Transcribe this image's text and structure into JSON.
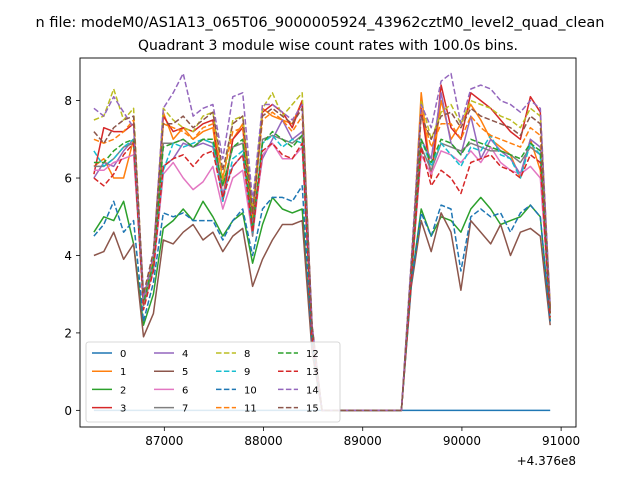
{
  "figure": {
    "suptitle": "n file: modeM0/AS1A13_065T06_9000005924_43962cztM0_level2_quad_clean",
    "offset_label": "+4.376e8"
  },
  "chart_data": {
    "type": "line",
    "title": "Quadrant 3 module wise count rates with 100.0s bins.",
    "xlabel": "",
    "ylabel": "",
    "xlim": [
      86150,
      91150
    ],
    "ylim": [
      -0.43,
      9.1
    ],
    "x_ticks": [
      87000,
      88000,
      89000,
      90000,
      91000
    ],
    "x_tick_labels": [
      "87000",
      "88000",
      "89000",
      "90000",
      "91000"
    ],
    "y_ticks": [
      0,
      2,
      4,
      6,
      8
    ],
    "y_tick_labels": [
      "0",
      "2",
      "4",
      "6",
      "8"
    ],
    "grid": false,
    "legend": {
      "placement": "lower-left",
      "columns": 4
    },
    "x": [
      86290,
      86390,
      86490,
      86590,
      86690,
      86790,
      86890,
      86990,
      87090,
      87190,
      87290,
      87390,
      87490,
      87590,
      87690,
      87790,
      87890,
      87990,
      88090,
      88190,
      88290,
      88390,
      88490,
      88590,
      88690,
      88790,
      88890,
      88990,
      89090,
      89190,
      89290,
      89390,
      89490,
      89590,
      89690,
      89790,
      89890,
      89990,
      90090,
      90190,
      90290,
      90390,
      90490,
      90590,
      90690,
      90790,
      90890
    ],
    "series": [
      {
        "name": "0",
        "color": "#1f77b4",
        "dash": "solid",
        "values": [
          0,
          0,
          0,
          0,
          0,
          0,
          0,
          0,
          0,
          0,
          0,
          0,
          0,
          0,
          0,
          0,
          0,
          0,
          0,
          0,
          0,
          0,
          0,
          0,
          0,
          0,
          0,
          0,
          0,
          0,
          0,
          0,
          0,
          0,
          0,
          0,
          0,
          0,
          0,
          0,
          0,
          0,
          0,
          0,
          0,
          0,
          0
        ]
      },
      {
        "name": "1",
        "color": "#ff7f0e",
        "dash": "solid",
        "values": [
          6.3,
          6.5,
          6.0,
          6.0,
          7.0,
          2.8,
          4.0,
          7.7,
          7.0,
          7.3,
          7.0,
          7.2,
          7.3,
          5.5,
          7.0,
          7.4,
          5.0,
          7.8,
          7.6,
          7.5,
          7.4,
          8.0,
          2.0,
          0,
          0,
          0,
          0,
          0,
          0,
          0,
          0,
          0,
          3.5,
          8.2,
          6.0,
          8.0,
          7.0,
          7.4,
          7.9,
          7.5,
          7.0,
          6.8,
          6.6,
          6.0,
          7.0,
          6.2,
          2.6
        ]
      },
      {
        "name": "2",
        "color": "#2ca02c",
        "dash": "solid",
        "values": [
          4.6,
          5.0,
          4.9,
          5.4,
          4.3,
          2.2,
          3.0,
          4.7,
          4.9,
          5.2,
          4.9,
          5.4,
          5.0,
          4.5,
          4.9,
          5.1,
          3.8,
          4.8,
          5.5,
          5.2,
          5.1,
          5.2,
          1.6,
          0,
          0,
          0,
          0,
          0,
          0,
          0,
          0,
          0,
          3.3,
          5.2,
          4.5,
          5.0,
          4.9,
          4.6,
          5.2,
          5.5,
          5.2,
          4.8,
          4.9,
          5.0,
          5.3,
          5.0,
          2.3
        ]
      },
      {
        "name": "3",
        "color": "#d62728",
        "dash": "solid",
        "values": [
          6.1,
          7.3,
          7.2,
          7.2,
          7.4,
          2.7,
          3.7,
          7.6,
          7.2,
          7.3,
          7.2,
          7.4,
          7.5,
          5.4,
          7.0,
          7.3,
          4.9,
          7.7,
          7.9,
          7.7,
          7.3,
          8.0,
          2.1,
          0,
          0,
          0,
          0,
          0,
          0,
          0,
          0,
          0,
          3.6,
          7.8,
          6.0,
          8.4,
          7.3,
          7.0,
          8.2,
          8.0,
          7.8,
          7.5,
          7.2,
          7.0,
          8.1,
          7.7,
          2.6
        ]
      },
      {
        "name": "4",
        "color": "#9467bd",
        "dash": "solid",
        "values": [
          6.0,
          6.4,
          6.3,
          6.7,
          7.0,
          2.9,
          3.6,
          6.3,
          6.5,
          6.9,
          6.8,
          6.9,
          6.8,
          5.6,
          6.3,
          6.6,
          4.8,
          6.5,
          7.0,
          7.5,
          7.0,
          7.2,
          1.8,
          0,
          0,
          0,
          0,
          0,
          0,
          0,
          0,
          0,
          3.5,
          7.0,
          6.5,
          8.2,
          6.9,
          6.6,
          7.6,
          6.5,
          7.0,
          6.7,
          6.5,
          6.1,
          7.0,
          6.8,
          2.5
        ]
      },
      {
        "name": "5",
        "color": "#8c564b",
        "dash": "solid",
        "values": [
          4.0,
          4.1,
          4.6,
          3.9,
          4.3,
          1.9,
          2.5,
          4.4,
          4.3,
          4.6,
          4.8,
          4.4,
          4.6,
          4.1,
          4.5,
          4.7,
          3.2,
          3.9,
          4.4,
          4.8,
          4.8,
          4.9,
          1.5,
          0,
          0,
          0,
          0,
          0,
          0,
          0,
          0,
          0,
          3.2,
          4.9,
          4.1,
          5.1,
          4.6,
          3.1,
          4.9,
          4.6,
          4.3,
          4.8,
          4.0,
          4.6,
          4.7,
          4.5,
          2.2
        ]
      },
      {
        "name": "6",
        "color": "#e377c2",
        "dash": "solid",
        "values": [
          6.2,
          6.2,
          6.4,
          6.5,
          6.6,
          2.8,
          3.6,
          6.1,
          6.4,
          6.0,
          5.7,
          5.9,
          6.3,
          5.2,
          6.0,
          6.2,
          4.5,
          6.6,
          6.9,
          6.5,
          6.5,
          6.8,
          1.9,
          0,
          0,
          0,
          0,
          0,
          0,
          0,
          0,
          0,
          3.4,
          6.6,
          6.1,
          6.7,
          6.6,
          6.4,
          6.7,
          6.4,
          6.8,
          6.4,
          6.2,
          6.1,
          6.3,
          6.0,
          2.5
        ]
      },
      {
        "name": "7",
        "color": "#7f7f7f",
        "dash": "solid",
        "values": [
          6.3,
          6.3,
          6.5,
          6.8,
          6.9,
          2.7,
          3.7,
          6.9,
          6.9,
          7.0,
          6.8,
          7.0,
          6.9,
          5.8,
          6.8,
          6.9,
          4.5,
          7.0,
          7.1,
          7.0,
          6.9,
          7.1,
          2.0,
          0,
          0,
          0,
          0,
          0,
          0,
          0,
          0,
          0,
          3.4,
          6.8,
          6.2,
          6.9,
          6.8,
          6.7,
          6.9,
          6.8,
          6.7,
          6.7,
          6.6,
          6.4,
          6.8,
          6.6,
          2.5
        ]
      },
      {
        "name": "8",
        "color": "#bcbd22",
        "dash": "dashed",
        "values": [
          7.5,
          7.6,
          8.3,
          7.5,
          7.8,
          2.8,
          3.9,
          7.8,
          7.5,
          7.3,
          7.2,
          7.6,
          7.7,
          5.9,
          7.5,
          7.6,
          5.2,
          7.8,
          8.2,
          7.6,
          7.9,
          8.2,
          2.1,
          0,
          0,
          0,
          0,
          0,
          0,
          0,
          0,
          0,
          3.8,
          8.0,
          7.0,
          7.7,
          7.9,
          7.4,
          8.0,
          7.9,
          7.8,
          7.6,
          7.5,
          7.3,
          7.8,
          7.6,
          2.7
        ]
      },
      {
        "name": "9",
        "color": "#17becf",
        "dash": "dashed",
        "values": [
          6.7,
          6.3,
          6.5,
          6.8,
          7.0,
          2.9,
          3.8,
          6.2,
          6.9,
          6.8,
          6.9,
          7.0,
          6.9,
          5.4,
          6.5,
          6.7,
          4.6,
          6.9,
          7.1,
          6.8,
          7.0,
          6.9,
          2.0,
          0,
          0,
          0,
          0,
          0,
          0,
          0,
          0,
          0,
          3.5,
          7.0,
          6.3,
          6.9,
          6.6,
          6.3,
          6.8,
          6.7,
          7.1,
          6.6,
          6.5,
          6.0,
          6.9,
          6.6,
          2.5
        ]
      },
      {
        "name": "10",
        "color": "#1f77b4",
        "dash": "dashed",
        "values": [
          4.5,
          4.8,
          5.4,
          4.6,
          4.9,
          2.3,
          3.3,
          5.1,
          5.0,
          5.1,
          4.9,
          4.9,
          4.9,
          4.4,
          4.9,
          5.2,
          4.0,
          5.2,
          5.5,
          5.5,
          5.4,
          5.8,
          1.7,
          0,
          0,
          0,
          0,
          0,
          0,
          0,
          0,
          0,
          3.3,
          5.1,
          4.5,
          5.3,
          5.2,
          3.6,
          5.0,
          5.2,
          5.0,
          5.1,
          4.6,
          5.1,
          5.3,
          5.0,
          2.3
        ]
      },
      {
        "name": "11",
        "color": "#ff7f0e",
        "dash": "dashed",
        "values": [
          7.0,
          6.9,
          7.0,
          7.2,
          7.5,
          2.9,
          3.9,
          7.4,
          7.3,
          7.2,
          7.0,
          7.3,
          7.4,
          6.0,
          7.2,
          7.3,
          5.0,
          7.5,
          7.7,
          7.5,
          7.2,
          7.6,
          2.1,
          0,
          0,
          0,
          0,
          0,
          0,
          0,
          0,
          0,
          3.6,
          7.7,
          6.8,
          7.4,
          7.4,
          7.0,
          7.6,
          7.3,
          7.1,
          7.0,
          6.9,
          6.8,
          7.3,
          7.1,
          2.6
        ]
      },
      {
        "name": "12",
        "color": "#2ca02c",
        "dash": "dashed",
        "values": [
          6.4,
          6.4,
          6.7,
          6.9,
          7.0,
          2.8,
          3.8,
          6.8,
          6.9,
          7.0,
          6.8,
          7.0,
          7.0,
          5.8,
          6.8,
          7.0,
          4.7,
          6.9,
          7.2,
          7.0,
          6.8,
          7.1,
          2.0,
          0,
          0,
          0,
          0,
          0,
          0,
          0,
          0,
          0,
          3.5,
          7.0,
          6.4,
          7.0,
          6.9,
          6.6,
          7.0,
          6.9,
          6.8,
          6.7,
          6.6,
          6.5,
          6.9,
          6.7,
          2.5
        ]
      },
      {
        "name": "13",
        "color": "#d62728",
        "dash": "dashed",
        "values": [
          6.0,
          5.8,
          6.1,
          6.6,
          6.9,
          2.6,
          3.6,
          6.3,
          6.5,
          6.6,
          6.3,
          6.6,
          6.7,
          5.5,
          6.3,
          6.6,
          4.6,
          6.7,
          6.9,
          6.6,
          6.5,
          6.9,
          1.9,
          0,
          0,
          0,
          0,
          0,
          0,
          0,
          0,
          0,
          3.4,
          6.8,
          5.8,
          6.2,
          6.0,
          5.6,
          6.4,
          6.5,
          6.6,
          6.3,
          6.2,
          6.0,
          6.6,
          6.4,
          2.4
        ]
      },
      {
        "name": "14",
        "color": "#9467bd",
        "dash": "dashed",
        "values": [
          7.8,
          7.6,
          8.1,
          7.7,
          7.3,
          2.9,
          4.0,
          7.8,
          8.2,
          8.7,
          7.6,
          7.8,
          7.9,
          6.5,
          8.1,
          8.2,
          5.4,
          7.9,
          7.9,
          7.7,
          7.5,
          7.9,
          2.2,
          0,
          0,
          0,
          0,
          0,
          0,
          0,
          0,
          0,
          3.9,
          7.9,
          7.3,
          8.5,
          8.7,
          7.4,
          8.3,
          8.4,
          8.3,
          8.0,
          7.9,
          7.7,
          8.0,
          7.8,
          2.7
        ]
      },
      {
        "name": "15",
        "color": "#8c564b",
        "dash": "dashed",
        "values": [
          7.2,
          6.9,
          7.3,
          7.5,
          7.6,
          3.0,
          4.1,
          7.4,
          7.4,
          7.6,
          7.3,
          7.5,
          7.7,
          6.2,
          7.4,
          7.6,
          5.1,
          7.6,
          7.8,
          7.6,
          7.4,
          7.8,
          2.2,
          0,
          0,
          0,
          0,
          0,
          0,
          0,
          0,
          0,
          3.8,
          7.6,
          7.0,
          7.6,
          7.7,
          7.3,
          7.8,
          7.6,
          7.5,
          7.4,
          7.3,
          7.1,
          7.6,
          7.4,
          2.6
        ]
      }
    ]
  }
}
